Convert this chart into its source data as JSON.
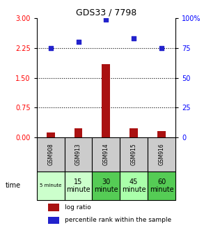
{
  "title": "GDS33 / 7798",
  "samples": [
    "GSM908",
    "GSM913",
    "GSM914",
    "GSM915",
    "GSM916"
  ],
  "time_texts": [
    "5 minute",
    "15\nminute",
    "30\nminute",
    "45\nminute",
    "60\nminute"
  ],
  "time_fontsizes": [
    5,
    7,
    7,
    7,
    7
  ],
  "log_ratio": [
    0.12,
    0.22,
    1.85,
    0.22,
    0.15
  ],
  "percentile_rank": [
    75,
    80,
    99,
    83,
    75
  ],
  "left_ylim": [
    0,
    3
  ],
  "right_ylim": [
    0,
    100
  ],
  "left_yticks": [
    0,
    0.75,
    1.5,
    2.25,
    3
  ],
  "right_yticks": [
    0,
    25,
    50,
    75,
    100
  ],
  "right_yticklabels": [
    "0",
    "25",
    "50",
    "75",
    "100%"
  ],
  "bar_color": "#aa1111",
  "dot_color": "#2222cc",
  "hline_positions": [
    0.75,
    1.5,
    2.25
  ],
  "legend_log_ratio": "log ratio",
  "legend_percentile": "percentile rank within the sample",
  "sample_bg_color": "#cccccc",
  "time_bg_colors": [
    "#ccffcc",
    "#ccffcc",
    "#55cc55",
    "#aaffaa",
    "#55cc55"
  ],
  "bar_width": 0.3,
  "title_fontsize": 9
}
